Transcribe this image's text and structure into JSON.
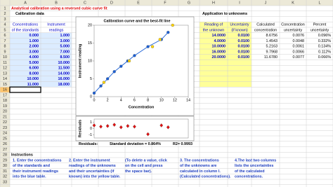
{
  "columns": [
    "A",
    "B",
    "C",
    "D",
    "E",
    "F",
    "G",
    "H",
    "I",
    "J",
    "K",
    "L"
  ],
  "rows": [
    1,
    2,
    3,
    4,
    5,
    6,
    7,
    8,
    9,
    10,
    11,
    12,
    13,
    14,
    15,
    16,
    17,
    18,
    19,
    20,
    21,
    22,
    23,
    24,
    25,
    26,
    27,
    28,
    29,
    30,
    31,
    32,
    33
  ],
  "title": "Analytical calibration using a reversed cubic curve fit",
  "calibration": {
    "title": "Calibration data",
    "headers": [
      [
        "Concentrations",
        "of the standards"
      ],
      [
        "Instrument",
        "readings"
      ]
    ],
    "rows": [
      [
        "0.000",
        "1.000"
      ],
      [
        "1.000",
        "3.000"
      ],
      [
        "2.000",
        "5.000"
      ],
      [
        "3.000",
        "7.000"
      ],
      [
        "4.000",
        "8.500"
      ],
      [
        "5.000",
        "10.000"
      ],
      [
        "6.000",
        "11.500"
      ],
      [
        "8.000",
        "14.000"
      ],
      [
        "10.000",
        "16.000"
      ],
      [
        "11.000",
        "18.000"
      ]
    ]
  },
  "unknowns": {
    "title": "Application to unknowns",
    "headers": [
      [
        "Reading of",
        "the unknown"
      ],
      [
        "Uncertainty",
        "(if known)"
      ],
      [
        "Calculated",
        "concentration"
      ],
      [
        "Concentration",
        "uncertainty"
      ],
      [
        "Percent",
        "uncertainty"
      ]
    ],
    "rows": [
      [
        "14.0000",
        "0.0100",
        "8.6756",
        "0.0076",
        "0.096%"
      ],
      [
        "4.0000",
        "0.0100",
        "1.4543",
        "0.0048",
        "0.332%"
      ],
      [
        "10.0000",
        "0.0100",
        "5.2163",
        "0.0061",
        "0.134%"
      ],
      [
        "16.0000",
        "0.0100",
        "9.7968",
        "0.0066",
        "0.112%"
      ],
      [
        "20.0000",
        "0.0100",
        "11.6780",
        "0.0077",
        "0.066%"
      ]
    ]
  },
  "stats": {
    "residuals": "Residuals:",
    "std": "Standard deviation =  0.864%",
    "r2": "R2=  0.9993"
  },
  "instructions": {
    "title": "Instructions",
    "items": [
      [
        "1. Enter the concentrations",
        "of the standards and",
        "their instrument readings",
        "into the blue table."
      ],
      [
        "2. Enter the instrument",
        "readings of the unknowns",
        "and their uncertainties (if",
        "known) into the yellow table."
      ],
      [
        "(To delete a value, click",
        "on the cell and press",
        "the space bar)."
      ],
      [
        "3. The concentrations",
        "of the unknowns are",
        "calculated in column I.",
        "(Calculated concentrations)."
      ],
      [
        "4.The last two columns",
        "lists the uncertainties",
        "of the calculated",
        "concentrations."
      ]
    ]
  },
  "chart_data": [
    {
      "type": "scatter",
      "title": "Calibration curve and the best-fit line",
      "x_label": "Concentration",
      "y_label": "Instrument reading",
      "xlim": [
        0,
        14
      ],
      "xticks": [
        0,
        2,
        4,
        6,
        8,
        10,
        12,
        14
      ],
      "ylim": [
        0,
        20
      ],
      "yticks": [
        0,
        5,
        10,
        15,
        20
      ],
      "grid": false,
      "series": [
        {
          "color": "#1a5fd6",
          "marker": "circle",
          "line": true,
          "x": [
            0,
            1,
            2,
            3,
            4,
            5,
            6,
            8,
            10,
            11
          ],
          "values": [
            1,
            3,
            5,
            7,
            8.5,
            10,
            11.5,
            14,
            16,
            18
          ]
        },
        {
          "color": "#ffd400",
          "marker": "circle",
          "line": false,
          "x": [
            8.6756,
            1.4543,
            5.2163,
            9.7968,
            11.678
          ],
          "values": [
            14,
            4,
            10,
            16,
            20
          ]
        }
      ]
    },
    {
      "type": "scatter",
      "y_label": "Residuals",
      "xlim": [
        0,
        14
      ],
      "ylim": [
        -1.5,
        1.5
      ],
      "yticks": [
        -1,
        0,
        1
      ],
      "grid": false,
      "series": [
        {
          "color": "#e01010",
          "marker": "diamond",
          "line": false,
          "x": [
            0,
            1,
            2,
            3,
            4,
            5,
            6,
            8,
            10,
            11
          ],
          "values": [
            0.5,
            0.3,
            0.4,
            0.6,
            0.2,
            0.4,
            0.3,
            -0.9,
            0.5,
            0.2
          ]
        }
      ]
    }
  ]
}
